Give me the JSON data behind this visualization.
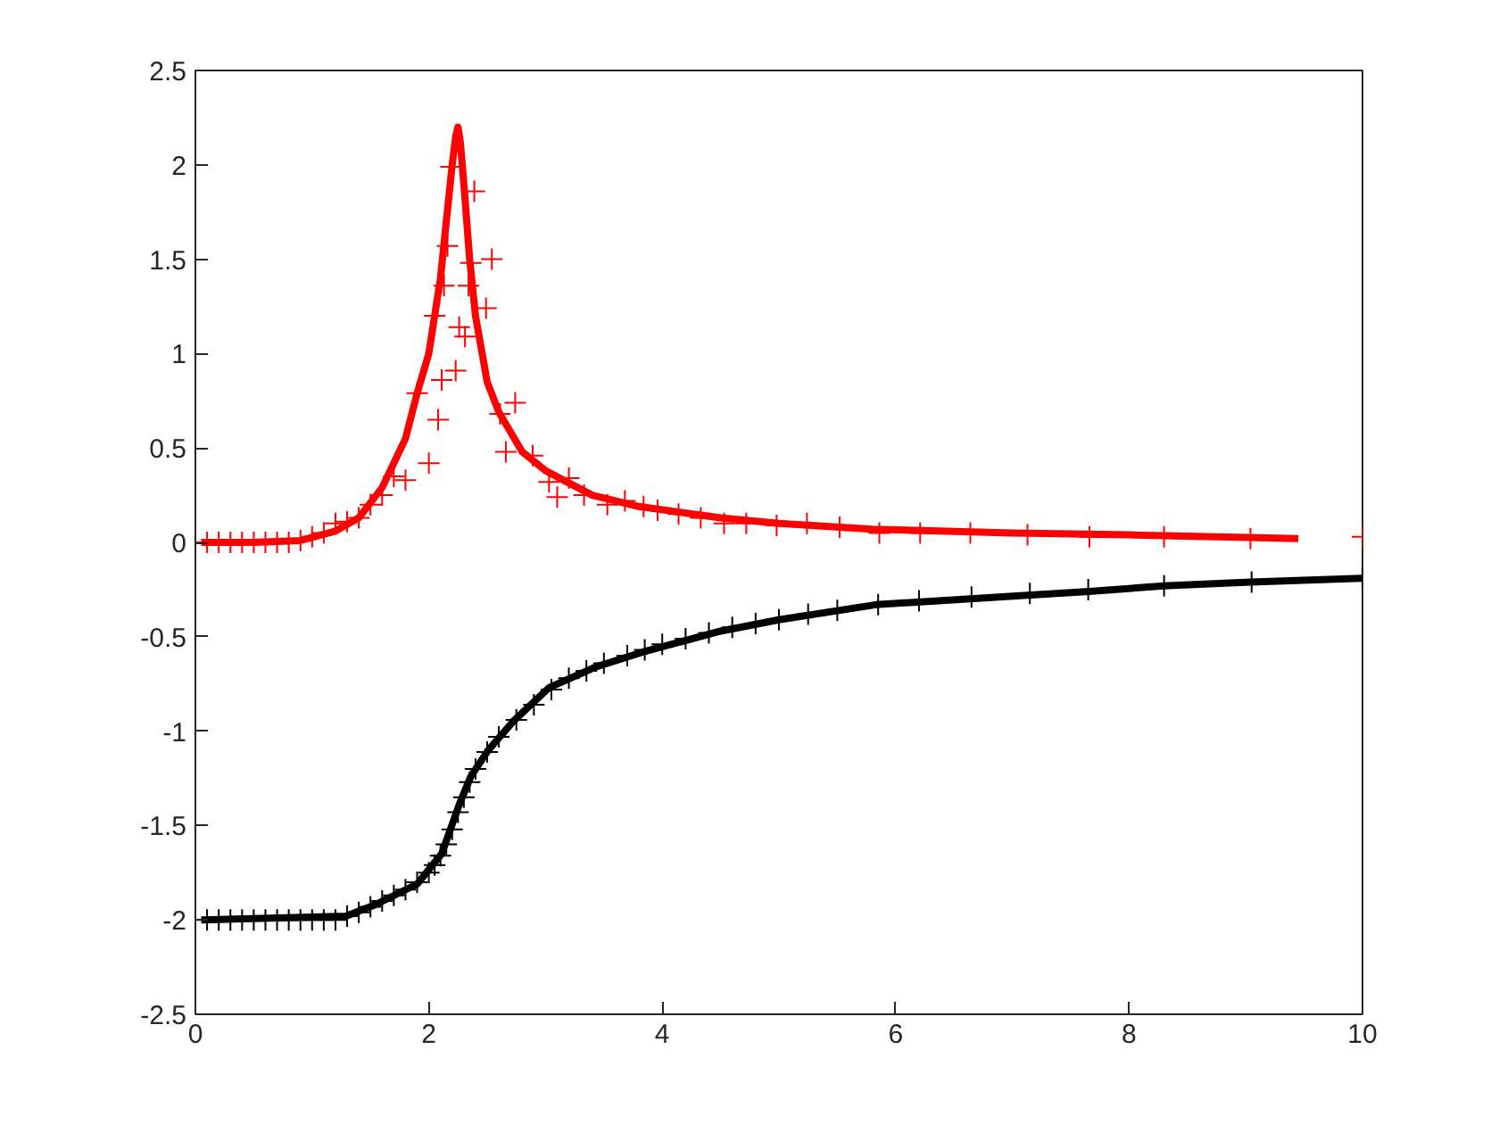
{
  "chart_data": {
    "type": "line",
    "xlim": [
      0,
      10
    ],
    "ylim": [
      -2.5,
      2.5
    ],
    "xticks": [
      0,
      2,
      4,
      6,
      8,
      10
    ],
    "yticks": [
      -2.5,
      -2,
      -1.5,
      -1,
      -0.5,
      0,
      0.5,
      1,
      1.5,
      2,
      2.5
    ],
    "grid": false,
    "line_style": "solid",
    "series": [
      {
        "color": "#ff0000",
        "marker": "none",
        "x": [
          0.05,
          0.5,
          0.9,
          1.2,
          1.4,
          1.6,
          1.8,
          1.9,
          2.0,
          2.1,
          2.15,
          2.2,
          2.23,
          2.25,
          2.27,
          2.3,
          2.35,
          2.4,
          2.5,
          2.6,
          2.8,
          3.0,
          3.4,
          3.8,
          4.5,
          5.0,
          5.8,
          7,
          8,
          9.45
        ],
        "values": [
          0,
          0,
          0.01,
          0.06,
          0.13,
          0.29,
          0.55,
          0.79,
          1.0,
          1.4,
          1.7,
          2.0,
          2.15,
          2.2,
          2.12,
          1.9,
          1.5,
          1.2,
          0.85,
          0.69,
          0.48,
          0.38,
          0.25,
          0.19,
          0.13,
          0.1,
          0.07,
          0.05,
          0.04,
          0.02
        ]
      },
      {
        "type": "scatter",
        "color": "#ff0000",
        "marker": "cross",
        "x": [
          0.1,
          0.2,
          0.3,
          0.4,
          0.5,
          0.6,
          0.7,
          0.8,
          0.9,
          1.0,
          1.1,
          1.2,
          1.3,
          1.4,
          1.5,
          1.6,
          1.7,
          1.8,
          1.9,
          2.0,
          2.05,
          2.08,
          2.11,
          2.13,
          2.16,
          2.19,
          2.23,
          2.26,
          2.31,
          2.34,
          2.36,
          2.39,
          2.49,
          2.54,
          2.61,
          2.66,
          2.74,
          2.89,
          3.03,
          3.1,
          3.2,
          3.33,
          3.53,
          3.68,
          3.84,
          3.96,
          4.14,
          4.33,
          4.53,
          4.72,
          4.98,
          5.24,
          5.52,
          5.86,
          6.21,
          6.64,
          7.13,
          7.66,
          8.3,
          9.04,
          10
        ],
        "values": [
          0,
          0,
          0,
          0,
          0,
          0,
          0,
          0,
          0.01,
          0.03,
          0.05,
          0.1,
          0.11,
          0.13,
          0.2,
          0.25,
          0.35,
          0.33,
          0.79,
          0.42,
          1.2,
          0.65,
          0.86,
          1.36,
          1.57,
          1.99,
          0.91,
          1.14,
          1.09,
          1.36,
          1.48,
          1.86,
          1.24,
          1.5,
          0.68,
          0.48,
          0.74,
          0.46,
          0.32,
          0.24,
          0.34,
          0.25,
          0.2,
          0.22,
          0.19,
          0.17,
          0.15,
          0.13,
          0.1,
          0.1,
          0.09,
          0.1,
          0.08,
          0.05,
          0.05,
          0.05,
          0.04,
          0.03,
          0.03,
          0.02,
          0.03
        ]
      },
      {
        "color": "#000000",
        "marker": "none",
        "x": [
          0.05,
          1.29,
          1.54,
          1.9,
          2.11,
          2.26,
          2.36,
          2.51,
          2.72,
          3.03,
          3.43,
          3.84,
          4.5,
          5.0,
          5.83,
          7.13,
          7.66,
          8.3,
          9.04,
          10
        ],
        "values": [
          -2.0,
          -1.98,
          -1.92,
          -1.81,
          -1.65,
          -1.39,
          -1.24,
          -1.1,
          -0.95,
          -0.77,
          -0.66,
          -0.58,
          -0.47,
          -0.41,
          -0.33,
          -0.28,
          -0.26,
          -0.23,
          -0.21,
          -0.19
        ]
      },
      {
        "type": "scatter",
        "color": "#000000",
        "marker": "cross",
        "x": [
          0.1,
          0.2,
          0.3,
          0.4,
          0.5,
          0.6,
          0.7,
          0.8,
          0.9,
          1.0,
          1.1,
          1.2,
          1.3,
          1.4,
          1.5,
          1.6,
          1.7,
          1.8,
          1.9,
          2.0,
          2.05,
          2.1,
          2.15,
          2.2,
          2.25,
          2.3,
          2.35,
          2.4,
          2.5,
          2.6,
          2.75,
          2.9,
          3.05,
          3.2,
          3.35,
          3.5,
          3.7,
          3.85,
          4.0,
          4.2,
          4.4,
          4.6,
          4.8,
          5.0,
          5.25,
          5.5,
          5.85,
          6.2,
          6.65,
          7.15,
          7.65,
          8.3,
          9.05,
          10
        ],
        "values": [
          -2.0,
          -2.0,
          -2.0,
          -2.0,
          -2.0,
          -2.0,
          -2.0,
          -2.0,
          -2.0,
          -2.0,
          -2.0,
          -2.0,
          -1.98,
          -1.96,
          -1.93,
          -1.9,
          -1.87,
          -1.84,
          -1.8,
          -1.75,
          -1.71,
          -1.66,
          -1.6,
          -1.52,
          -1.43,
          -1.35,
          -1.27,
          -1.2,
          -1.11,
          -1.03,
          -0.94,
          -0.86,
          -0.78,
          -0.72,
          -0.68,
          -0.64,
          -0.6,
          -0.57,
          -0.54,
          -0.51,
          -0.48,
          -0.45,
          -0.43,
          -0.41,
          -0.38,
          -0.36,
          -0.33,
          -0.31,
          -0.29,
          -0.27,
          -0.25,
          -0.23,
          -0.21,
          -0.19
        ]
      }
    ]
  }
}
